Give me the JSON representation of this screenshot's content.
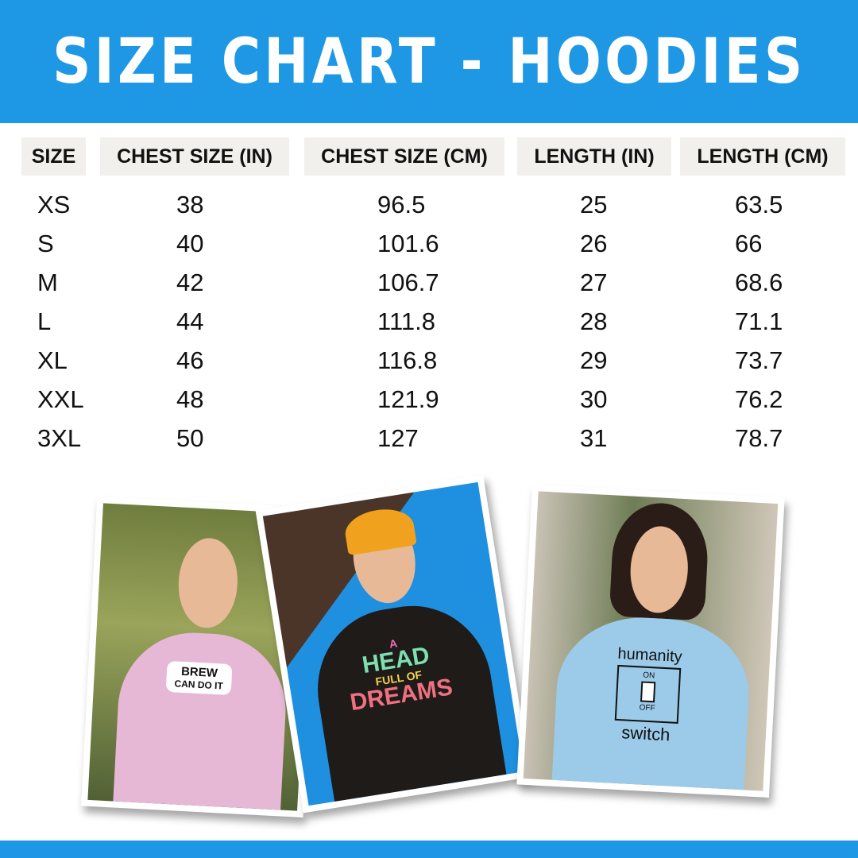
{
  "title": "SIZE CHART - HOODIES",
  "colors": {
    "brand": "#1e98e4",
    "header_cell": "#f1f0ec"
  },
  "table": {
    "headers": [
      "SIZE",
      "CHEST SIZE (IN)",
      "CHEST SIZE (CM)",
      "LENGTH (IN)",
      "LENGTH (CM)"
    ],
    "rows": [
      [
        "XS",
        "38",
        "96.5",
        "25",
        "63.5"
      ],
      [
        "S",
        "40",
        "101.6",
        "26",
        "66"
      ],
      [
        "M",
        "42",
        "106.7",
        "27",
        "68.6"
      ],
      [
        "L",
        "44",
        "111.8",
        "28",
        "71.1"
      ],
      [
        "XL",
        "46",
        "116.8",
        "29",
        "73.7"
      ],
      [
        "XXL",
        "48",
        "121.9",
        "30",
        "76.2"
      ],
      [
        "3XL",
        "50",
        "127",
        "31",
        "78.7"
      ]
    ]
  },
  "photos": [
    {
      "hoodie_color": "#e7b7d6",
      "print": [
        "BREW",
        "CAN DO IT"
      ]
    },
    {
      "hoodie_color": "#1e1b19",
      "print": [
        "A",
        "HEAD",
        "FULL OF",
        "DREAMS"
      ]
    },
    {
      "hoodie_color": "#9ccbe9",
      "print": [
        "humanity",
        "ON",
        "OFF",
        "switch"
      ]
    }
  ]
}
